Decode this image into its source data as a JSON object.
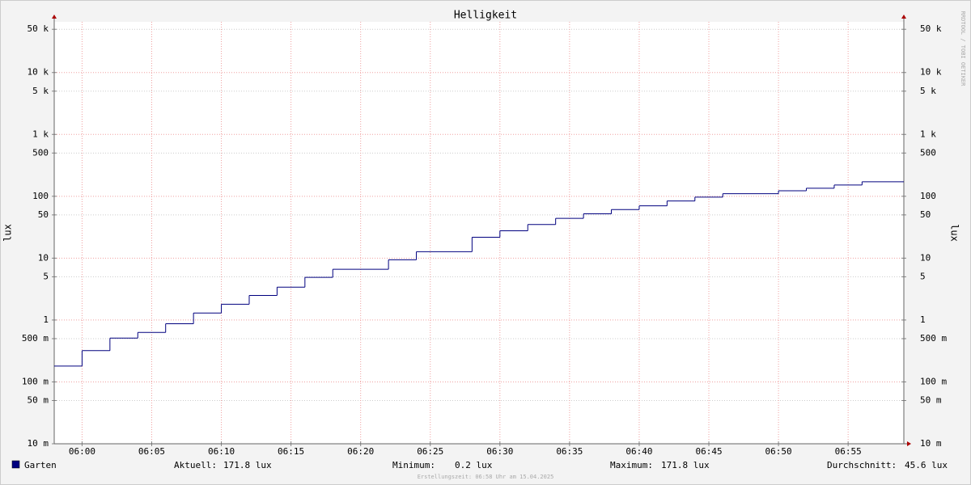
{
  "chart_data": {
    "type": "line",
    "title": "Helligkeit",
    "watermark": "RRDTOOL / TOBI OETIKER",
    "y_label": "lux",
    "log_y": true,
    "grid": true,
    "step": true,
    "xlim": [
      "05:58",
      "06:59"
    ],
    "xticks": [
      "06:00",
      "06:05",
      "06:10",
      "06:15",
      "06:20",
      "06:25",
      "06:30",
      "06:35",
      "06:40",
      "06:45",
      "06:50",
      "06:55"
    ],
    "ylim": [
      0.01,
      66000
    ],
    "yticks": [
      {
        "value": 0.01,
        "label": "10 m"
      },
      {
        "value": 0.05,
        "label": "50 m"
      },
      {
        "value": 0.1,
        "label": "100 m"
      },
      {
        "value": 0.5,
        "label": "500 m"
      },
      1,
      5,
      10,
      50,
      100,
      500,
      {
        "value": 1000,
        "label": "1 k"
      },
      {
        "value": 5000,
        "label": "5 k"
      },
      {
        "value": 10000,
        "label": "10 k"
      },
      {
        "value": 50000,
        "label": "50 k"
      }
    ],
    "x": [
      "05:58",
      "06:00",
      "06:02",
      "06:04",
      "06:06",
      "06:08",
      "06:10",
      "06:12",
      "06:14",
      "06:16",
      "06:18",
      "06:22",
      "06:24",
      "06:28",
      "06:30",
      "06:32",
      "06:34",
      "06:36",
      "06:38",
      "06:40",
      "06:42",
      "06:44",
      "06:46",
      "06:50",
      "06:52",
      "06:54",
      "06:56"
    ],
    "series": [
      {
        "name": "Garten",
        "color": "#00007f",
        "values": [
          0.18,
          0.32,
          0.51,
          0.63,
          0.87,
          1.3,
          1.8,
          2.5,
          3.4,
          4.9,
          6.6,
          9.4,
          12.7,
          21.8,
          27.7,
          35,
          44,
          52,
          61,
          70,
          84,
          97,
          110,
          123,
          135,
          152,
          171.8
        ]
      }
    ],
    "stats": [
      {
        "label": "Aktuell:",
        "value": "171.8 lux"
      },
      {
        "label": "Minimum:",
        "value": "0.2 lux"
      },
      {
        "label": "Maximum:",
        "value": "171.8 lux"
      },
      {
        "label": "Durchschnitt:",
        "value": "45.6 lux"
      }
    ],
    "footer": "Erstellungszeit: 06:58 Uhr am 15.04.2025"
  }
}
